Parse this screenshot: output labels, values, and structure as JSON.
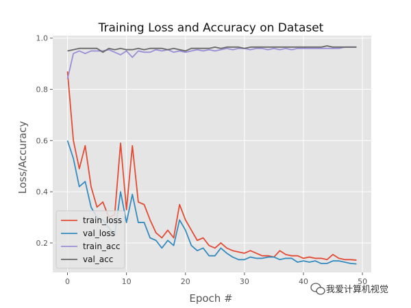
{
  "chart_data": {
    "type": "line",
    "title": "Training Loss and Accuracy on Dataset",
    "xlabel": "Epoch #",
    "ylabel": "Loss/Accuracy",
    "xlim": [
      -2.5,
      51.5
    ],
    "ylim": [
      0.085,
      1.01
    ],
    "xticks": [
      0,
      10,
      20,
      30,
      40,
      50
    ],
    "yticks": [
      0.2,
      0.4,
      0.6,
      0.8,
      1.0
    ],
    "ytick_labels": [
      "0.2",
      "0.4",
      "0.6",
      "0.8",
      "1.0"
    ],
    "grid": true,
    "legend_position": "lower-left",
    "background": "#e5e5e5",
    "x": [
      0,
      1,
      2,
      3,
      4,
      5,
      6,
      7,
      8,
      9,
      10,
      11,
      12,
      13,
      14,
      15,
      16,
      17,
      18,
      19,
      20,
      21,
      22,
      23,
      24,
      25,
      26,
      27,
      28,
      29,
      30,
      31,
      32,
      33,
      34,
      35,
      36,
      37,
      38,
      39,
      40,
      41,
      42,
      43,
      44,
      45,
      46,
      47,
      48,
      49
    ],
    "series": [
      {
        "name": "train_loss",
        "color": "#e24a33",
        "values": [
          0.87,
          0.6,
          0.49,
          0.58,
          0.42,
          0.34,
          0.36,
          0.3,
          0.31,
          0.59,
          0.33,
          0.58,
          0.36,
          0.35,
          0.29,
          0.24,
          0.22,
          0.25,
          0.22,
          0.35,
          0.29,
          0.25,
          0.21,
          0.22,
          0.19,
          0.18,
          0.2,
          0.18,
          0.17,
          0.165,
          0.16,
          0.17,
          0.16,
          0.15,
          0.15,
          0.145,
          0.17,
          0.155,
          0.15,
          0.15,
          0.14,
          0.145,
          0.14,
          0.14,
          0.135,
          0.155,
          0.14,
          0.135,
          0.135,
          0.133
        ]
      },
      {
        "name": "val_loss",
        "color": "#348abd",
        "values": [
          0.6,
          0.53,
          0.42,
          0.44,
          0.34,
          0.3,
          0.29,
          0.26,
          0.23,
          0.4,
          0.28,
          0.39,
          0.28,
          0.28,
          0.22,
          0.21,
          0.18,
          0.21,
          0.19,
          0.29,
          0.25,
          0.19,
          0.17,
          0.18,
          0.15,
          0.15,
          0.18,
          0.16,
          0.145,
          0.135,
          0.135,
          0.145,
          0.14,
          0.14,
          0.145,
          0.145,
          0.135,
          0.14,
          0.14,
          0.125,
          0.13,
          0.125,
          0.13,
          0.12,
          0.12,
          0.13,
          0.13,
          0.125,
          0.12,
          0.118
        ]
      },
      {
        "name": "train_acc",
        "color": "#988ed5",
        "values": [
          0.84,
          0.94,
          0.95,
          0.94,
          0.95,
          0.95,
          0.95,
          0.955,
          0.945,
          0.935,
          0.95,
          0.925,
          0.95,
          0.945,
          0.945,
          0.955,
          0.95,
          0.955,
          0.945,
          0.95,
          0.945,
          0.95,
          0.955,
          0.95,
          0.955,
          0.95,
          0.955,
          0.96,
          0.955,
          0.96,
          0.96,
          0.955,
          0.96,
          0.96,
          0.955,
          0.96,
          0.955,
          0.96,
          0.955,
          0.96,
          0.96,
          0.96,
          0.96,
          0.96,
          0.96,
          0.96,
          0.96,
          0.965,
          0.965,
          0.965
        ]
      },
      {
        "name": "val_acc",
        "color": "#666666",
        "values": [
          0.95,
          0.955,
          0.96,
          0.96,
          0.96,
          0.96,
          0.945,
          0.96,
          0.955,
          0.96,
          0.955,
          0.955,
          0.96,
          0.955,
          0.96,
          0.96,
          0.96,
          0.955,
          0.96,
          0.955,
          0.95,
          0.96,
          0.96,
          0.96,
          0.96,
          0.965,
          0.96,
          0.965,
          0.965,
          0.965,
          0.96,
          0.965,
          0.965,
          0.965,
          0.965,
          0.965,
          0.965,
          0.965,
          0.965,
          0.965,
          0.965,
          0.965,
          0.965,
          0.965,
          0.97,
          0.965,
          0.965,
          0.965,
          0.965,
          0.965
        ]
      }
    ]
  },
  "watermark": {
    "text": "我爱计算机视觉",
    "icon": "wechat-icon"
  }
}
